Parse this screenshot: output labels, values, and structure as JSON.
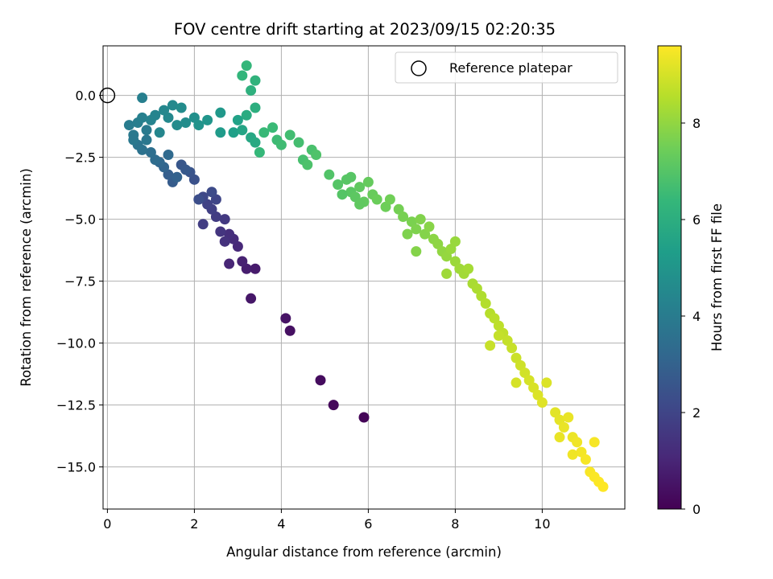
{
  "chart_data": {
    "type": "scatter",
    "title": "FOV centre drift starting at 2023/09/15 02:20:35",
    "xlabel": "Angular distance from reference (arcmin)",
    "ylabel": "Rotation from reference (arcmin)",
    "xlim": [
      -0.1,
      11.9
    ],
    "ylim": [
      -16.7,
      2.0
    ],
    "xticks": [
      0,
      2,
      4,
      6,
      8,
      10
    ],
    "xtick_labels": [
      "0",
      "2",
      "4",
      "6",
      "8",
      "10"
    ],
    "yticks": [
      0.0,
      -2.5,
      -5.0,
      -7.5,
      -10.0,
      -12.5,
      -15.0
    ],
    "ytick_labels": [
      "0.0",
      "−2.5",
      "−5.0",
      "−7.5",
      "−10.0",
      "−12.5",
      "−15.0"
    ],
    "grid": true,
    "legend": {
      "placement": "top-right",
      "entries": [
        "Reference platepar"
      ]
    },
    "reference_point": {
      "x": 0,
      "y": 0
    },
    "colorbar": {
      "label": "Hours from first FF file",
      "range": [
        0,
        9.6
      ],
      "ticks": [
        0,
        2,
        4,
        6,
        8
      ],
      "tick_labels": [
        "0",
        "2",
        "4",
        "6",
        "8"
      ],
      "colormap": "viridis",
      "stops": [
        "#440154",
        "#482878",
        "#3e4989",
        "#31688e",
        "#26828e",
        "#1f9e89",
        "#35b779",
        "#6ece58",
        "#b5de2b",
        "#fde725"
      ]
    },
    "series": [
      {
        "points": [
          [
            5.9,
            -13.0,
            0.1
          ],
          [
            5.2,
            -12.5,
            0.2
          ],
          [
            4.9,
            -11.5,
            0.3
          ],
          [
            4.2,
            -9.5,
            0.4
          ],
          [
            4.1,
            -9.0,
            0.5
          ],
          [
            3.3,
            -8.2,
            0.6
          ],
          [
            3.4,
            -7.0,
            0.7
          ],
          [
            3.2,
            -7.0,
            0.8
          ],
          [
            3.1,
            -6.7,
            0.9
          ],
          [
            2.8,
            -6.8,
            1.0
          ],
          [
            3.0,
            -6.1,
            1.1
          ],
          [
            2.9,
            -5.8,
            1.2
          ],
          [
            2.8,
            -5.6,
            1.3
          ],
          [
            2.7,
            -5.9,
            1.4
          ],
          [
            2.6,
            -5.5,
            1.5
          ],
          [
            2.7,
            -5.0,
            1.6
          ],
          [
            2.5,
            -4.9,
            1.7
          ],
          [
            2.4,
            -4.6,
            1.8
          ],
          [
            2.3,
            -4.4,
            1.9
          ],
          [
            2.5,
            -4.2,
            2.0
          ],
          [
            2.2,
            -4.1,
            2.1
          ],
          [
            2.4,
            -3.9,
            2.2
          ],
          [
            2.2,
            -5.2,
            1.75
          ],
          [
            2.1,
            -4.2,
            2.3
          ],
          [
            2.0,
            -3.4,
            2.4
          ],
          [
            1.9,
            -3.1,
            2.5
          ],
          [
            1.7,
            -2.8,
            2.6
          ],
          [
            1.8,
            -3.0,
            2.7
          ],
          [
            1.5,
            -3.5,
            2.8
          ],
          [
            1.4,
            -3.2,
            2.9
          ],
          [
            1.6,
            -3.3,
            3.0
          ],
          [
            1.3,
            -2.9,
            3.1
          ],
          [
            1.2,
            -2.7,
            3.2
          ],
          [
            1.4,
            -2.4,
            3.3
          ],
          [
            1.1,
            -2.6,
            3.4
          ],
          [
            1.0,
            -2.3,
            3.5
          ],
          [
            0.8,
            -2.2,
            3.6
          ],
          [
            0.7,
            -2.0,
            3.7
          ],
          [
            0.9,
            -1.8,
            3.8
          ],
          [
            0.6,
            -1.6,
            3.9
          ],
          [
            0.5,
            -1.2,
            4.0
          ],
          [
            0.7,
            -1.1,
            4.1
          ],
          [
            0.8,
            -0.9,
            4.2
          ],
          [
            1.0,
            -1.0,
            4.3
          ],
          [
            1.2,
            -1.5,
            4.4
          ],
          [
            1.4,
            -0.9,
            4.5
          ],
          [
            1.6,
            -1.2,
            4.6
          ],
          [
            1.8,
            -1.1,
            4.7
          ],
          [
            2.0,
            -0.9,
            4.8
          ],
          [
            2.1,
            -1.2,
            4.9
          ],
          [
            2.3,
            -1.0,
            5.0
          ],
          [
            2.6,
            -0.7,
            5.1
          ],
          [
            2.6,
            -1.5,
            5.2
          ],
          [
            0.8,
            -0.1,
            4.15
          ],
          [
            1.1,
            -0.8,
            4.35
          ],
          [
            1.3,
            -0.6,
            4.45
          ],
          [
            1.5,
            -0.4,
            4.55
          ],
          [
            1.7,
            -0.5,
            4.65
          ],
          [
            0.6,
            -1.8,
            3.85
          ],
          [
            0.9,
            -1.4,
            3.95
          ],
          [
            2.9,
            -1.5,
            5.4
          ],
          [
            3.0,
            -1.0,
            5.5
          ],
          [
            3.1,
            -1.4,
            5.6
          ],
          [
            3.3,
            -1.7,
            5.7
          ],
          [
            3.4,
            -1.9,
            5.8
          ],
          [
            3.2,
            -0.8,
            5.9
          ],
          [
            3.4,
            -0.5,
            6.0
          ],
          [
            3.3,
            0.2,
            6.1
          ],
          [
            3.4,
            0.6,
            6.2
          ],
          [
            3.1,
            0.8,
            6.3
          ],
          [
            3.2,
            1.2,
            6.35
          ],
          [
            3.5,
            -2.3,
            6.4
          ],
          [
            3.6,
            -1.5,
            6.45
          ],
          [
            3.8,
            -1.3,
            6.5
          ],
          [
            3.9,
            -1.8,
            6.55
          ],
          [
            4.0,
            -2.0,
            6.6
          ],
          [
            4.2,
            -1.6,
            6.65
          ],
          [
            4.4,
            -1.9,
            6.7
          ],
          [
            4.5,
            -2.6,
            6.75
          ],
          [
            4.7,
            -2.2,
            6.8
          ],
          [
            4.6,
            -2.8,
            6.85
          ],
          [
            4.8,
            -2.4,
            6.9
          ],
          [
            5.1,
            -3.2,
            6.95
          ],
          [
            5.3,
            -3.6,
            7.0
          ],
          [
            5.5,
            -3.4,
            7.05
          ],
          [
            5.6,
            -3.9,
            7.1
          ],
          [
            5.7,
            -4.1,
            7.15
          ],
          [
            5.8,
            -3.7,
            7.2
          ],
          [
            5.9,
            -4.3,
            7.25
          ],
          [
            6.0,
            -3.5,
            7.3
          ],
          [
            5.4,
            -4.0,
            7.0
          ],
          [
            5.6,
            -3.3,
            7.05
          ],
          [
            5.8,
            -4.4,
            7.2
          ],
          [
            6.1,
            -4.0,
            7.35
          ],
          [
            6.2,
            -4.2,
            7.4
          ],
          [
            6.4,
            -4.5,
            7.45
          ],
          [
            6.5,
            -4.2,
            7.5
          ],
          [
            6.7,
            -4.6,
            7.55
          ],
          [
            6.8,
            -4.9,
            7.6
          ],
          [
            7.0,
            -5.1,
            7.65
          ],
          [
            7.1,
            -5.4,
            7.7
          ],
          [
            7.2,
            -5.0,
            7.75
          ],
          [
            7.3,
            -5.6,
            7.8
          ],
          [
            7.4,
            -5.3,
            7.85
          ],
          [
            7.5,
            -5.8,
            7.9
          ],
          [
            7.6,
            -6.0,
            7.95
          ],
          [
            6.9,
            -5.6,
            7.7
          ],
          [
            7.1,
            -6.3,
            7.8
          ],
          [
            7.7,
            -6.3,
            8.0
          ],
          [
            7.8,
            -6.5,
            8.05
          ],
          [
            7.9,
            -6.2,
            8.1
          ],
          [
            8.0,
            -6.7,
            8.15
          ],
          [
            8.1,
            -7.0,
            8.2
          ],
          [
            8.2,
            -7.2,
            8.25
          ],
          [
            8.3,
            -7.0,
            8.3
          ],
          [
            8.4,
            -7.6,
            8.35
          ],
          [
            7.8,
            -7.2,
            8.2
          ],
          [
            8.0,
            -5.9,
            8.1
          ],
          [
            8.5,
            -7.8,
            8.4
          ],
          [
            8.6,
            -8.1,
            8.45
          ],
          [
            8.7,
            -8.4,
            8.5
          ],
          [
            8.8,
            -8.8,
            8.55
          ],
          [
            8.9,
            -9.0,
            8.6
          ],
          [
            9.0,
            -9.3,
            8.65
          ],
          [
            9.1,
            -9.6,
            8.7
          ],
          [
            9.2,
            -9.9,
            8.75
          ],
          [
            9.3,
            -10.2,
            8.8
          ],
          [
            8.8,
            -10.1,
            8.8
          ],
          [
            9.0,
            -9.7,
            8.75
          ],
          [
            9.4,
            -10.6,
            8.85
          ],
          [
            9.5,
            -10.9,
            8.9
          ],
          [
            9.6,
            -11.2,
            8.95
          ],
          [
            9.7,
            -11.5,
            9.0
          ],
          [
            9.8,
            -11.8,
            9.05
          ],
          [
            9.9,
            -12.1,
            9.1
          ],
          [
            10.0,
            -12.4,
            9.15
          ],
          [
            10.1,
            -11.6,
            9.1
          ],
          [
            9.4,
            -11.6,
            9.0
          ],
          [
            10.3,
            -12.8,
            9.2
          ],
          [
            10.4,
            -13.1,
            9.25
          ],
          [
            10.5,
            -13.4,
            9.3
          ],
          [
            10.6,
            -13.0,
            9.3
          ],
          [
            10.7,
            -13.8,
            9.35
          ],
          [
            10.8,
            -14.0,
            9.4
          ],
          [
            10.9,
            -14.4,
            9.45
          ],
          [
            11.0,
            -14.7,
            9.5
          ],
          [
            11.1,
            -15.2,
            9.52
          ],
          [
            11.2,
            -15.4,
            9.55
          ],
          [
            11.3,
            -15.6,
            9.58
          ],
          [
            11.4,
            -15.8,
            9.6
          ],
          [
            11.2,
            -14.0,
            9.5
          ],
          [
            10.4,
            -13.8,
            9.3
          ],
          [
            10.7,
            -14.5,
            9.4
          ]
        ]
      }
    ]
  }
}
